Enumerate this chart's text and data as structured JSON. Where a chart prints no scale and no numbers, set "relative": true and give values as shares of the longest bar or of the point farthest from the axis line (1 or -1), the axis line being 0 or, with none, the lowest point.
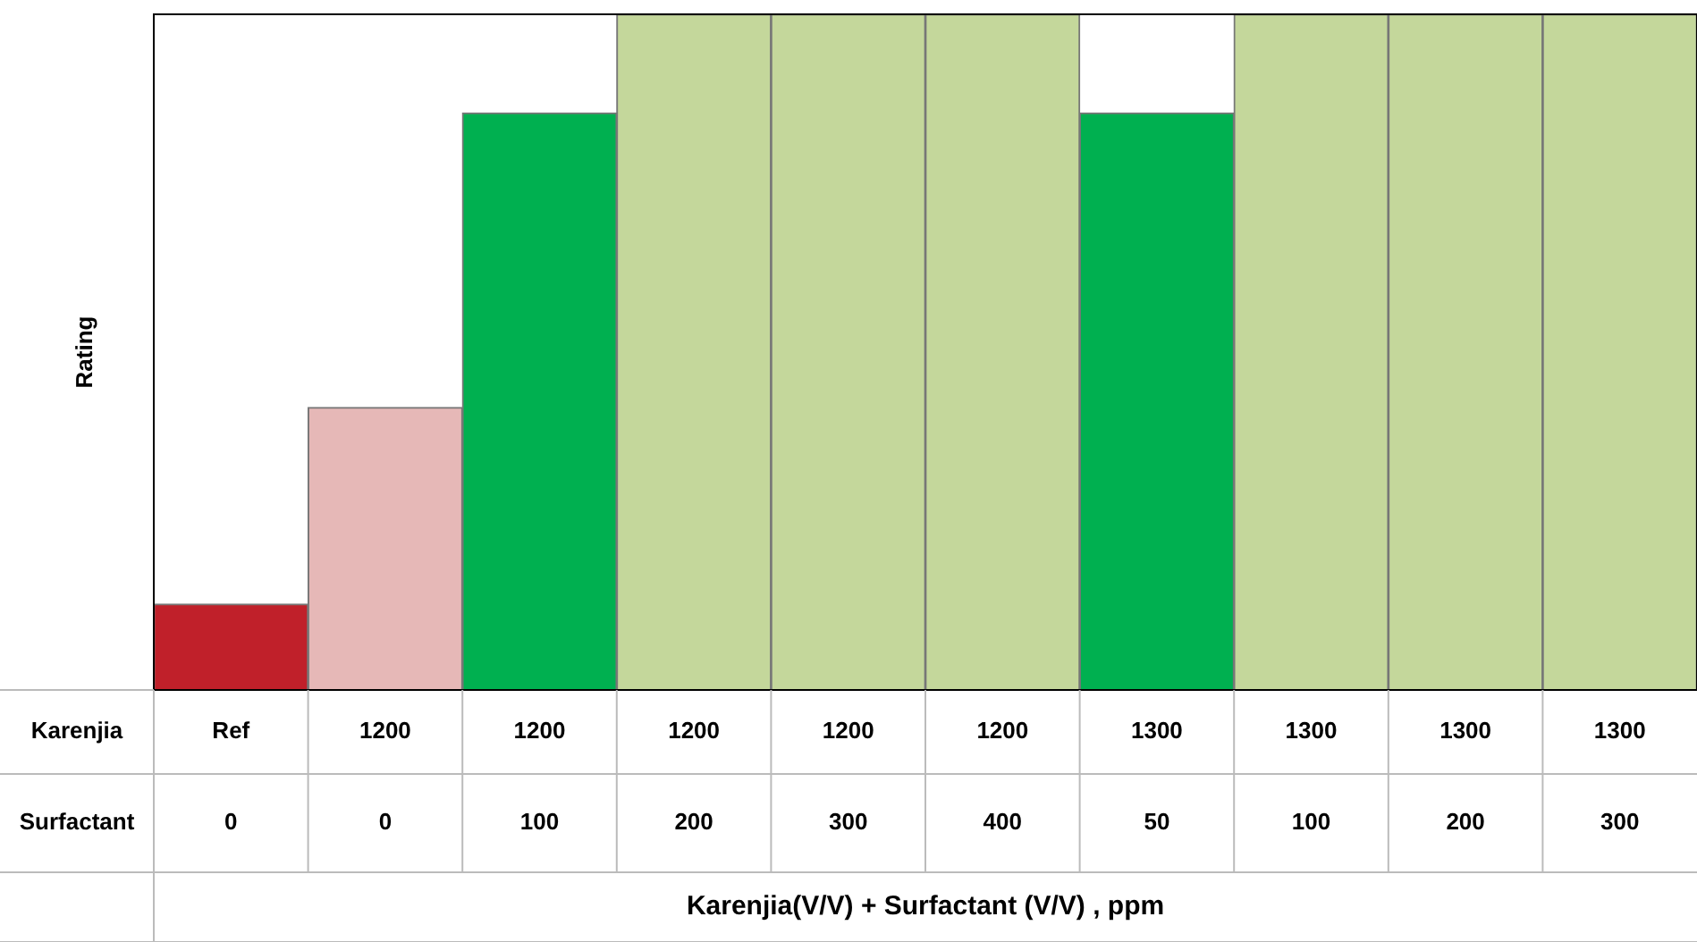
{
  "chart_data": {
    "type": "bar",
    "relative": true,
    "ylabel": "Rating",
    "categories": [
      "Ref\n0",
      "1200\n0",
      "1200\n100",
      "1200\n200",
      "1200\n300",
      "1200\n400",
      "1300\n50",
      "1300\n100",
      "1300\n200",
      "1300\n300"
    ],
    "values": [
      0.127,
      0.418,
      0.854,
      1,
      1,
      1,
      0.854,
      1,
      1,
      1
    ],
    "colors": [
      "#c0202a",
      "#e6b8b7",
      "#00b050",
      "#c4d79b",
      "#c4d79b",
      "#c4d79b",
      "#00b050",
      "#c4d79b",
      "#c4d79b",
      "#c4d79b"
    ],
    "annotations": [
      "Karenjia",
      "Surfactant",
      "Karenjia(V/V) + Surfactant (V/V) , ppm"
    ],
    "legend": false
  }
}
